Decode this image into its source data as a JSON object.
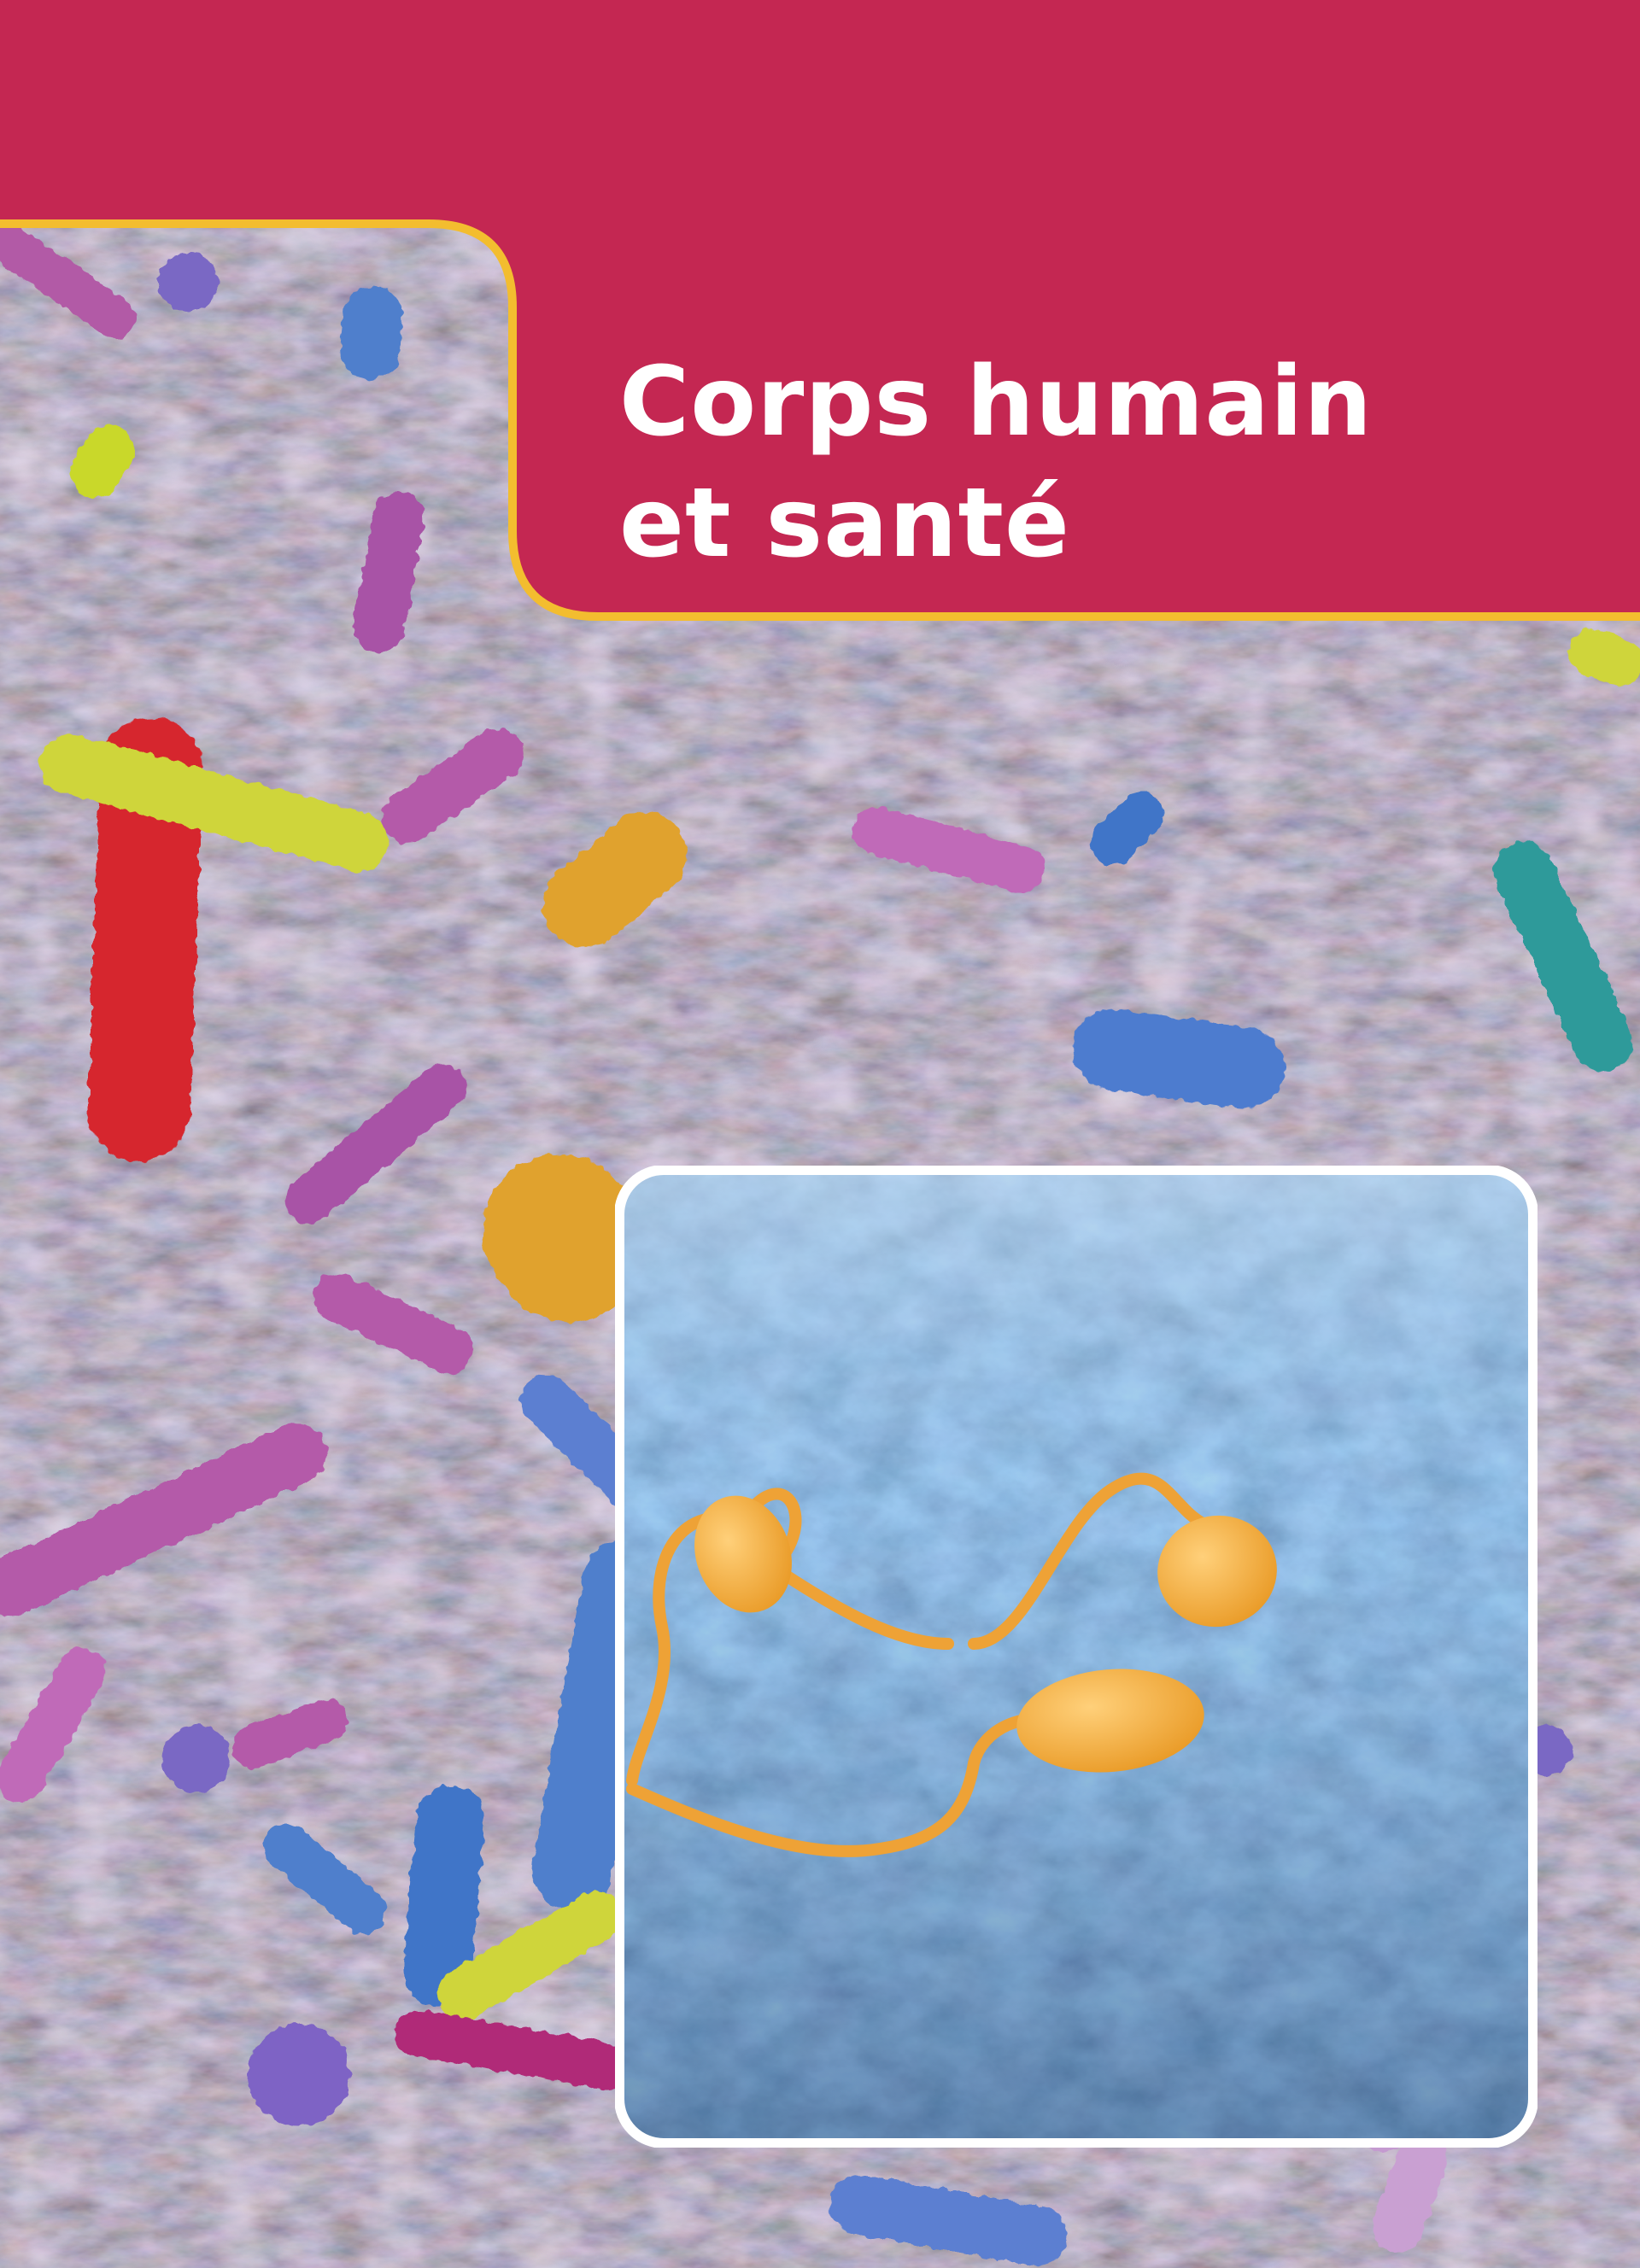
{
  "cover": {
    "title_lines": [
      "Corps humain",
      "et santé"
    ],
    "colors": {
      "banner": "#c42752",
      "banner_border": "#f3bd2f",
      "inset_border": "#ffffff",
      "title_text": "#ffffff"
    }
  },
  "background_image": {
    "icon": "microscopic-bacteria-photo"
  },
  "inset_image": {
    "icon": "microscopic-flagellated-cells-photo"
  }
}
